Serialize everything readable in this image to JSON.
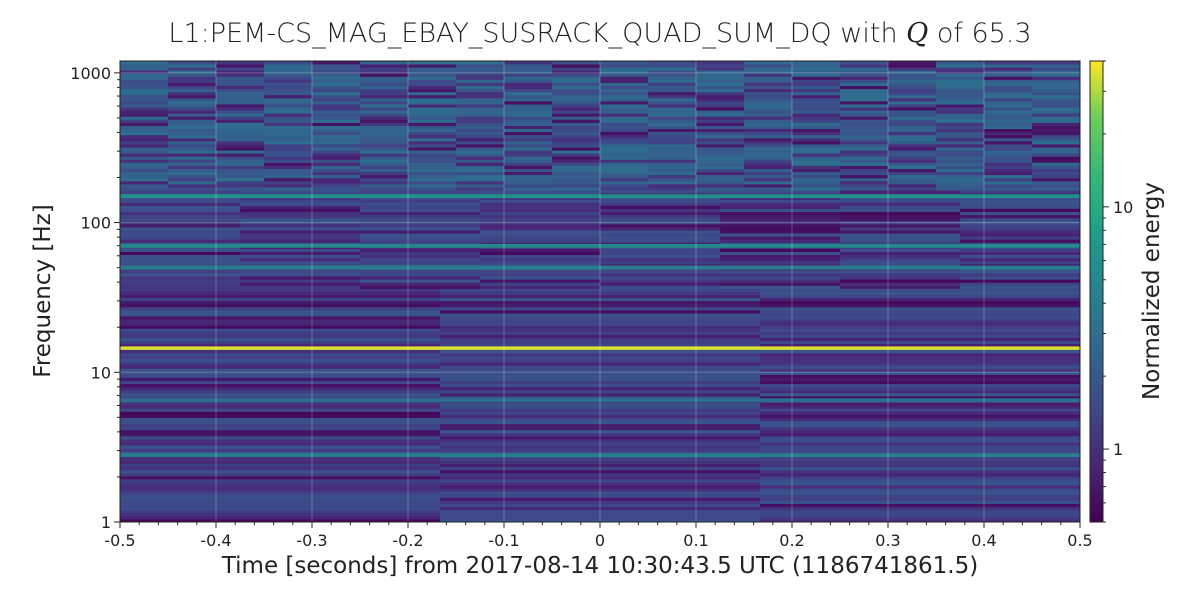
{
  "chart_data": {
    "type": "heatmap",
    "title": "L1:PEM-CS_MAG_EBAY_SUSRACK_QUAD_SUM_DQ with Q of 65.3",
    "title_parts": {
      "prefix": "L1:PEM-CS_MAG_EBAY_SUSRACK_QUAD_SUM_DQ with ",
      "q_symbol": "Q",
      "suffix": " of 65.3"
    },
    "xlabel": "Time [seconds] from 2017-08-14 10:30:43.5 UTC (1186741861.5)",
    "ylabel": "Frequency [Hz]",
    "colorbar_label": "Normalized energy",
    "colormap": "viridis",
    "xlim": [
      -0.5,
      0.5
    ],
    "ylim": [
      1,
      1200
    ],
    "yscale": "log",
    "colorbar_scale": "log",
    "colorbar_range": [
      0.5,
      40
    ],
    "x_ticks": [
      -0.5,
      -0.4,
      -0.3,
      -0.2,
      -0.1,
      0,
      0.1,
      0.2,
      0.3,
      0.4,
      0.5
    ],
    "x_tick_labels": [
      "-0.5",
      "-0.4",
      "-0.3",
      "-0.2",
      "-0.1",
      "0",
      "0.1",
      "0.2",
      "0.3",
      "0.4",
      "0.5"
    ],
    "y_ticks": [
      1,
      10,
      100,
      1000
    ],
    "y_tick_labels": [
      "1",
      "10",
      "100",
      "1000"
    ],
    "colorbar_ticks": [
      1,
      10
    ],
    "colorbar_tick_labels": [
      "1",
      "10"
    ],
    "grid": true,
    "features": [
      {
        "description": "persistent line",
        "frequency_hz": 14.5,
        "normalized_energy": 35
      },
      {
        "description": "band",
        "frequency_hz": 150,
        "normalized_energy": 6
      },
      {
        "description": "band",
        "frequency_hz": 70,
        "normalized_energy": 5
      },
      {
        "description": "band",
        "frequency_hz": 50,
        "normalized_energy": 4
      },
      {
        "description": "band",
        "frequency_hz": 2.8,
        "normalized_energy": 4
      },
      {
        "description": "band",
        "frequency_hz": 6.5,
        "normalized_energy": 3
      }
    ]
  }
}
